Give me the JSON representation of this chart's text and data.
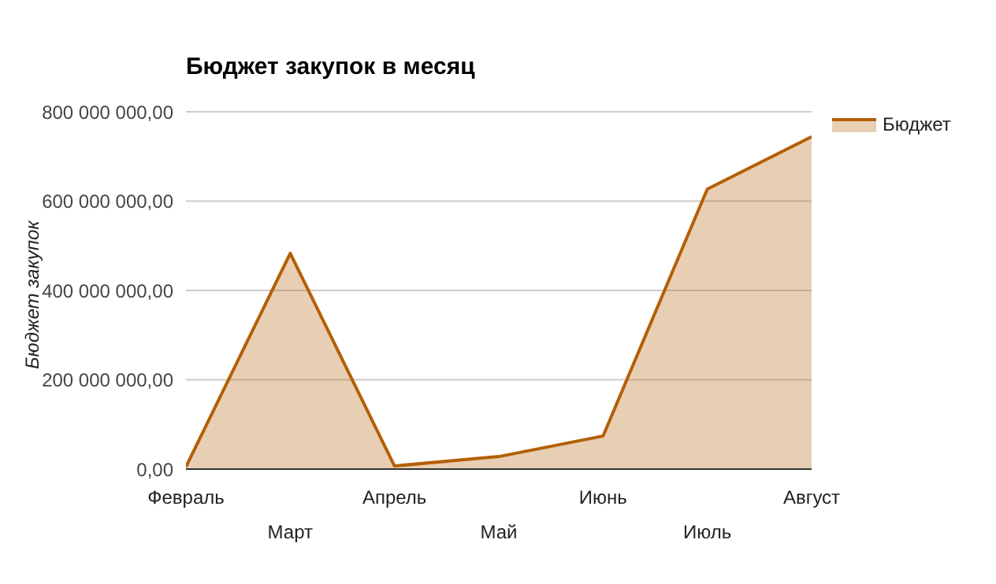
{
  "chart_data": {
    "type": "area",
    "title": "Бюджет закупок в месяц",
    "ylabel": "Бюджет закупок",
    "categories": [
      "Февраль",
      "Март",
      "Апрель",
      "Май",
      "Июнь",
      "Июль",
      "Август"
    ],
    "series": [
      {
        "name": "Бюджет",
        "color": "#b45f06",
        "values": [
          5000000,
          483000000,
          7000000,
          28000000,
          74000000,
          627000000,
          744000000
        ]
      }
    ],
    "ylim": [
      0,
      800000000
    ],
    "yticks": [
      {
        "value": 0,
        "label": "0,00"
      },
      {
        "value": 200000000,
        "label": "200 000 000,00"
      },
      {
        "value": 400000000,
        "label": "400 000 000,00"
      },
      {
        "value": 600000000,
        "label": "600 000 000,00"
      },
      {
        "value": 800000000,
        "label": "800 000 000,00"
      }
    ],
    "grid": "y",
    "legend": "top right",
    "marker": "none"
  }
}
